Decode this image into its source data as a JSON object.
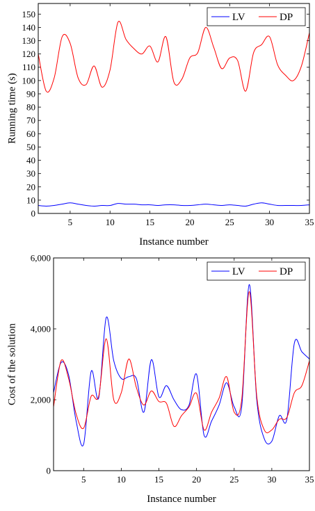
{
  "chart_data": [
    {
      "type": "line",
      "title": "",
      "xlabel": "Instance number",
      "ylabel": "Running time (s)",
      "xlim": [
        1,
        35
      ],
      "ylim": [
        0,
        158
      ],
      "xticks": [
        "5",
        "10",
        "15",
        "20",
        "25",
        "30",
        "35"
      ],
      "yticks": [
        "0",
        "10",
        "20",
        "30",
        "40",
        "50",
        "60",
        "70",
        "80",
        "90",
        "100",
        "110",
        "120",
        "130",
        "140",
        "150"
      ],
      "legend": "top-right",
      "x": [
        1,
        2,
        3,
        4,
        5,
        6,
        7,
        8,
        9,
        10,
        11,
        12,
        13,
        14,
        15,
        16,
        17,
        18,
        19,
        20,
        21,
        22,
        23,
        24,
        25,
        26,
        27,
        28,
        29,
        30,
        31,
        32,
        33,
        34,
        35
      ],
      "series": [
        {
          "name": "LV",
          "color": "#0000ff",
          "values": [
            6,
            5.5,
            6,
            7,
            8,
            7,
            6,
            5.5,
            6,
            6,
            7.5,
            7,
            7,
            6.5,
            6.5,
            6,
            6.5,
            6.5,
            6,
            6,
            6.5,
            7,
            6.5,
            6,
            6.5,
            6,
            5.5,
            7,
            8,
            7,
            6,
            6,
            6,
            6,
            6.5
          ]
        },
        {
          "name": "DP",
          "color": "#ff0000",
          "values": [
            120,
            92,
            102,
            133,
            128,
            102,
            97,
            111,
            95,
            108,
            144,
            131,
            124,
            120,
            126,
            114,
            133,
            99,
            101,
            117,
            121,
            140,
            125,
            109,
            117,
            115,
            92,
            121,
            127,
            133,
            112,
            104,
            100,
            111,
            136
          ]
        }
      ]
    },
    {
      "type": "line",
      "title": "",
      "xlabel": "Instance number",
      "ylabel": "Cost of the solution",
      "xlim": [
        1,
        35
      ],
      "ylim": [
        0,
        6000
      ],
      "xticks": [
        "5",
        "10",
        "15",
        "20",
        "25",
        "30",
        "35"
      ],
      "yticks": [
        "0",
        "2,000",
        "4,000",
        "6,000"
      ],
      "legend": "top-right",
      "x": [
        1,
        2,
        3,
        4,
        5,
        6,
        7,
        8,
        9,
        10,
        11,
        12,
        13,
        14,
        15,
        16,
        17,
        18,
        19,
        20,
        21,
        22,
        23,
        24,
        25,
        26,
        27,
        28,
        29,
        30,
        31,
        32,
        33,
        34,
        35
      ],
      "series": [
        {
          "name": "LV",
          "color": "#0000ff",
          "values": [
            2200,
            3050,
            2700,
            1400,
            750,
            2800,
            2050,
            4320,
            3100,
            2600,
            2650,
            2600,
            1650,
            3130,
            2080,
            2400,
            2000,
            1720,
            1850,
            2720,
            1000,
            1400,
            1850,
            2480,
            1800,
            1800,
            5250,
            2000,
            900,
            830,
            1550,
            1450,
            3600,
            3350,
            3150
          ]
        },
        {
          "name": "DP",
          "color": "#ff0000",
          "values": [
            1800,
            3100,
            2600,
            1600,
            1200,
            2100,
            2100,
            3720,
            2000,
            2200,
            3150,
            2350,
            1850,
            2250,
            1950,
            1900,
            1250,
            1550,
            1800,
            2180,
            1150,
            1650,
            2050,
            2650,
            1650,
            2000,
            5050,
            2100,
            1150,
            1150,
            1450,
            1500,
            2200,
            2400,
            3100
          ]
        }
      ]
    }
  ]
}
